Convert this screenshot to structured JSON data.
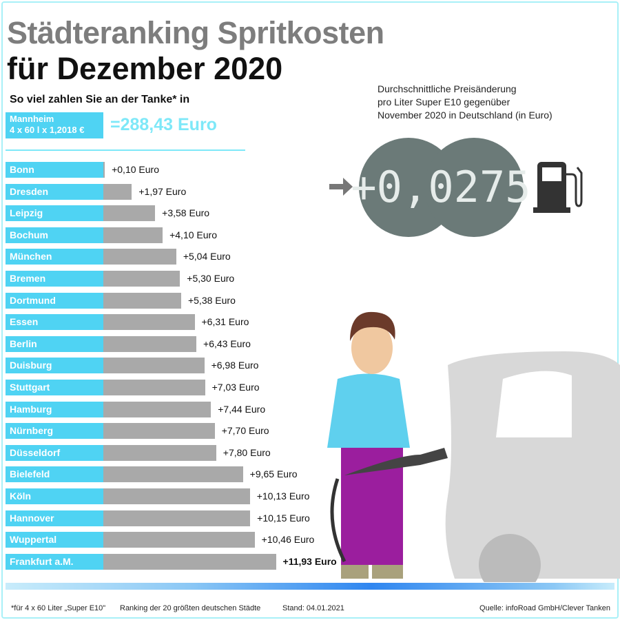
{
  "title_line1": "Städteranking Spritkosten",
  "title_line2": "für Dezember 2020",
  "subtitle": "So viel zahlen Sie an der Tanke* in",
  "reference": {
    "city": "Mannheim",
    "formula": "4 x 60 l x 1,2018 €",
    "value": "=288,43 Euro"
  },
  "price_change": {
    "description": [
      "Durchschnittliche Preisänderung",
      "pro Liter Super E10 gegenüber",
      "November 2020 in Deutschland (in Euro)"
    ],
    "value": "+0,0275"
  },
  "colors": {
    "label": "#4fd3f3",
    "bar": "#a9a9a9",
    "reference_value": "#7ee8f8",
    "gauge": "#6b7a78"
  },
  "chart_data": {
    "type": "bar",
    "orientation": "horizontal",
    "categories": [
      "Bonn",
      "Dresden",
      "Leipzig",
      "Bochum",
      "München",
      "Bremen",
      "Dortmund",
      "Essen",
      "Berlin",
      "Duisburg",
      "Stuttgart",
      "Hamburg",
      "Nürnberg",
      "Düsseldorf",
      "Bielefeld",
      "Köln",
      "Hannover",
      "Wuppertal",
      "Frankfurt a.M."
    ],
    "values": [
      0.1,
      1.97,
      3.58,
      4.1,
      5.04,
      5.3,
      5.38,
      6.31,
      6.43,
      6.98,
      7.03,
      7.44,
      7.7,
      7.8,
      9.65,
      10.13,
      10.15,
      10.46,
      11.93
    ],
    "labels": [
      "+0,10 Euro",
      "+1,97 Euro",
      "+3,58 Euro",
      "+4,10 Euro",
      "+5,04 Euro",
      "+5,30 Euro",
      "+5,38 Euro",
      "+6,31 Euro",
      "+6,43 Euro",
      "+6,98 Euro",
      "+7,03 Euro",
      "+7,44 Euro",
      "+7,70 Euro",
      "+7,80 Euro",
      "+9,65 Euro",
      "+10,13 Euro",
      "+10,15 Euro",
      "+10,46 Euro",
      "+11,93 Euro"
    ],
    "unit": "Euro",
    "grid": false
  },
  "footer": {
    "note": "*für 4 x 60 Liter „Super E10\"",
    "ranking": "Ranking der 20 größten deutschen Städte",
    "date": "Stand: 04.01.2021",
    "source": "Quelle: infoRoad GmbH/Clever Tanken"
  }
}
